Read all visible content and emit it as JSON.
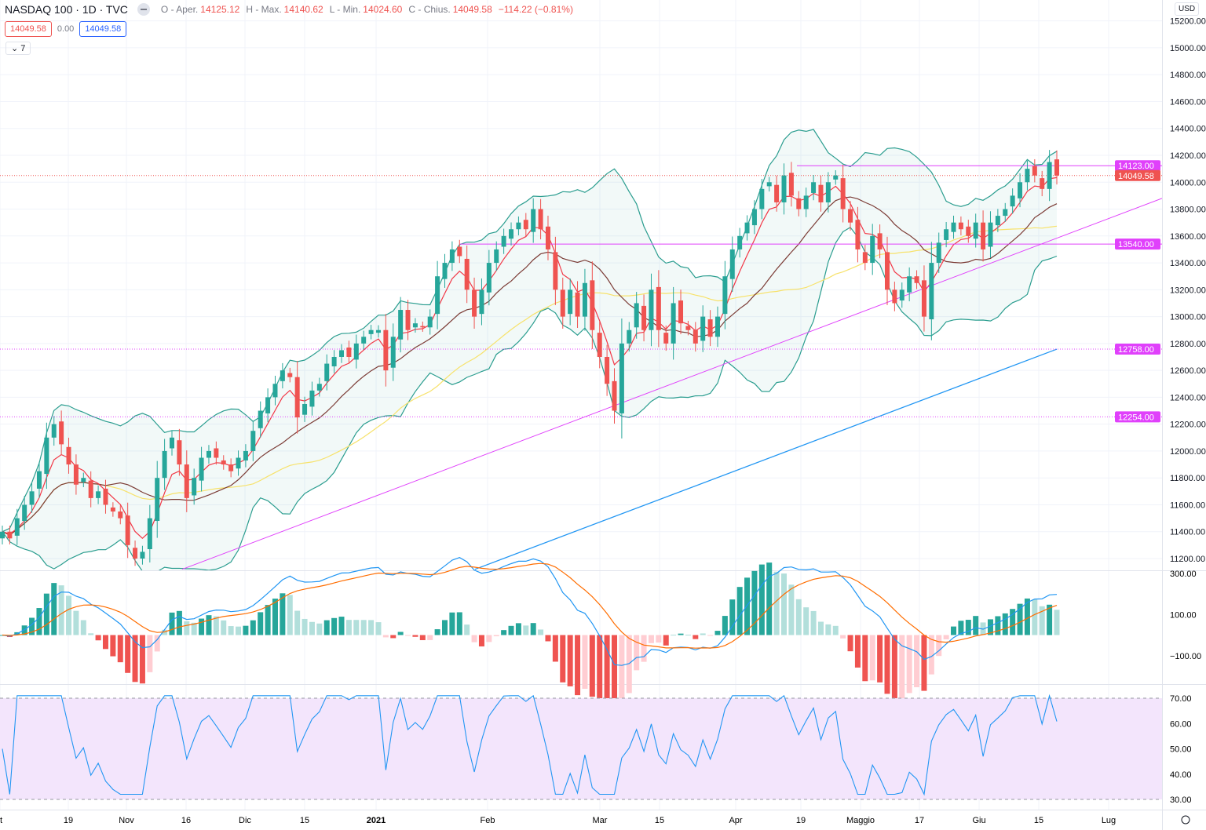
{
  "header": {
    "symbol": "NASDAQ 100 · 1D · TVC",
    "open_label": "O - Aper.",
    "open": "14125.12",
    "high_label": "H - Max.",
    "high": "14140.62",
    "low_label": "L - Min.",
    "low": "14024.60",
    "close_label": "C - Chius.",
    "close": "14049.58",
    "change": "−114.22 (−0.81%)"
  },
  "price_boxes": {
    "bid": "14049.58",
    "spread": "0.00",
    "ask": "14049.58"
  },
  "collapse": {
    "label": "7"
  },
  "currency": "USD",
  "colors": {
    "up": "#26a69a",
    "down": "#ef5350",
    "ema": "#f23645",
    "sma20": "#7b3b35",
    "sma50": "#f7e26b",
    "bands": "#2a9d8f",
    "ma200": "#2196f3",
    "drawing": "#e040fb",
    "macd": "#2196f3",
    "signal": "#ff6d00",
    "rsi": "#2196f3",
    "rsi_band": "#f3e5fc"
  },
  "chart_data": {
    "type": "candlestick",
    "price_axis": {
      "ticks": [
        15200,
        15000,
        14800,
        14600,
        14400,
        14200,
        14000,
        13800,
        13600,
        13400,
        13200,
        13000,
        12800,
        12600,
        12400,
        12200,
        12000,
        11800,
        11600,
        11400,
        11200
      ],
      "range": [
        11120,
        15260
      ]
    },
    "time_axis": {
      "labels": [
        "t",
        "19",
        "Nov",
        "16",
        "Dic",
        "15",
        "2021",
        "Feb",
        "Mar",
        "15",
        "Apr",
        "19",
        "Maggio",
        "17",
        "Giu",
        "15",
        "Lug"
      ]
    },
    "closes": [
      11400,
      11350,
      11500,
      11600,
      11700,
      11850,
      12100,
      12200,
      12050,
      11900,
      11750,
      11800,
      11650,
      11700,
      11600,
      11550,
      11500,
      11300,
      11200,
      11250,
      11500,
      11800,
      12000,
      12100,
      11900,
      11650,
      11800,
      11950,
      12000,
      11950,
      11900,
      11850,
      11950,
      12000,
      12150,
      12300,
      12400,
      12500,
      12600,
      12550,
      12250,
      12350,
      12450,
      12500,
      12650,
      12700,
      12750,
      12700,
      12800,
      12850,
      12900,
      12900,
      12600,
      12850,
      13050,
      12900,
      12950,
      12920,
      13000,
      13300,
      13400,
      13500,
      13450,
      13200,
      13000,
      13200,
      13400,
      13500,
      13600,
      13650,
      13700,
      13650,
      13800,
      13650,
      13500,
      13200,
      13000,
      13200,
      13000,
      13250,
      12900,
      12700,
      12500,
      12300,
      12800,
      12900,
      13100,
      12900,
      13200,
      12900,
      12800,
      13100,
      12950,
      12900,
      12800,
      13000,
      12850,
      13000,
      13300,
      13500,
      13600,
      13700,
      13800,
      13950,
      14000,
      13850,
      14050,
      13900,
      13800,
      13900,
      14000,
      13850,
      14000,
      14050,
      13800,
      13700,
      13500,
      13400,
      13600,
      13500,
      13200,
      13100,
      13200,
      13300,
      13250,
      13000,
      13400,
      13550,
      13650,
      13700,
      13650,
      13600,
      13700,
      13500,
      13700,
      13750,
      13800,
      13900,
      14000,
      14100,
      14050,
      13950,
      14150,
      14049.58
    ],
    "ma200": {
      "start": 11120,
      "end": 12758
    },
    "horizontal_levels": [
      {
        "price": "14123.00",
        "value": 14123
      },
      {
        "price": "13540.00",
        "value": 13540
      },
      {
        "price": "12758.00",
        "value": 12758
      },
      {
        "price": "12254.00",
        "value": 12254
      }
    ],
    "last_price": {
      "label": "14049.58",
      "value": 14049.58
    },
    "trendline": {
      "start": 11120,
      "end": 13880
    },
    "macd_axis": {
      "ticks": [
        "300.00",
        "100.00",
        "−100.00"
      ],
      "values": [
        300,
        100,
        -100
      ]
    },
    "rsi_axis": {
      "ticks": [
        "70.00",
        "60.00",
        "50.00",
        "40.00",
        "30.00"
      ],
      "values": [
        70,
        60,
        50,
        40,
        30
      ]
    }
  }
}
